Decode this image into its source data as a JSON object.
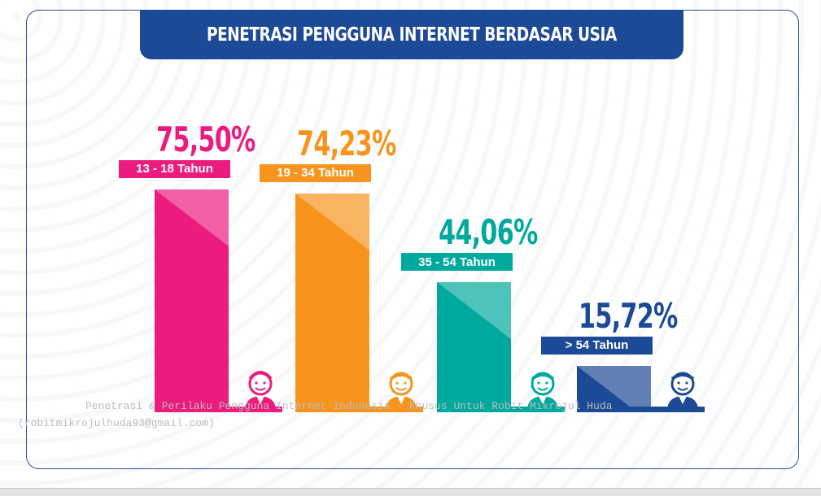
{
  "chart_data": {
    "type": "bar",
    "title": "PENETRASI PENGGUNA INTERNET BERDASAR USIA",
    "categories": [
      "13 - 18 Tahun",
      "19 - 34 Tahun",
      "35 - 54 Tahun",
      "> 54 Tahun"
    ],
    "values": [
      75.5,
      74.23,
      44.06,
      15.72
    ],
    "value_labels": [
      "75,50%",
      "74,23%",
      "44,06%",
      "15,72%"
    ],
    "colors": [
      "#ec1c7f",
      "#f7941d",
      "#00a99d",
      "#1d4a96"
    ],
    "ylim": [
      0,
      100
    ],
    "xlabel": "",
    "ylabel": ""
  },
  "watermark": {
    "line1": "Penetrasi & Perilaku Pengguna Internet Indonesia - Khusus Untuk Robit Mikrojul Huda",
    "line2": "(robitmikrojulhuda93@gmail.com)"
  }
}
